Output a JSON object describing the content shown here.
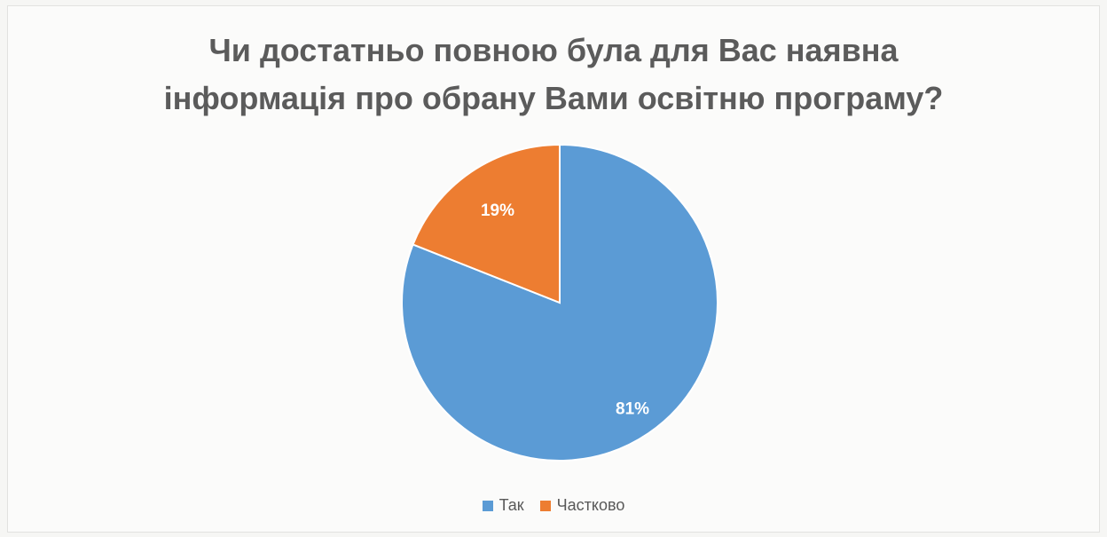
{
  "chart_data": {
    "type": "pie",
    "title_lines": [
      "Чи достатньо повною була для Вас наявна",
      "інформація про обрану Вами освітню програму?"
    ],
    "categories": [
      "Так",
      "Частково"
    ],
    "values": [
      81,
      19
    ],
    "data_labels": [
      "81%",
      "19%"
    ],
    "colors": [
      "#5b9bd5",
      "#ed7d31"
    ],
    "legend_position": "bottom",
    "start": "top, clockwise"
  }
}
